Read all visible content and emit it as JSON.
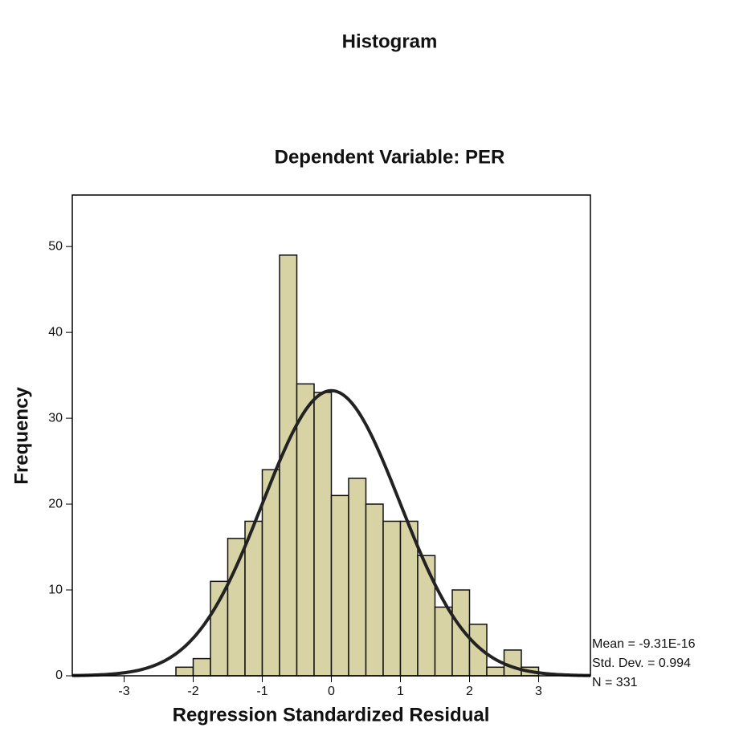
{
  "chart_data": {
    "type": "histogram",
    "title": "Histogram",
    "subtitle": "Dependent Variable: PER",
    "x_label": "Regression Standardized Residual",
    "y_label": "Frequency",
    "bins": [
      -2.25,
      -2,
      -1.75,
      -1.5,
      -1.25,
      -1,
      -0.75,
      -0.5,
      -0.25,
      0,
      0.25,
      0.5,
      0.75,
      1,
      1.25,
      1.5,
      1.75,
      2,
      2.25,
      2.5,
      2.75,
      3
    ],
    "values": [
      1,
      2,
      11,
      16,
      18,
      24,
      49,
      34,
      33,
      21,
      23,
      20,
      18,
      18,
      14,
      8,
      10,
      6,
      1,
      3,
      1
    ],
    "color": "#d8d3a4",
    "curve_color": "#222222",
    "xlim": [
      -3.75,
      3.75
    ],
    "ylim": [
      0,
      56
    ],
    "xticks": [
      -3,
      -2,
      -1,
      0,
      1,
      2,
      3
    ],
    "yticks": [
      0,
      10,
      20,
      30,
      40,
      50
    ],
    "stats": [
      {
        "label": "Mean = -9.31E-16",
        "value": -9.31e-16
      },
      {
        "label": "Std. Dev. = 0.994",
        "value": 0.994
      },
      {
        "label": "N = 331",
        "value": 331
      }
    ]
  }
}
